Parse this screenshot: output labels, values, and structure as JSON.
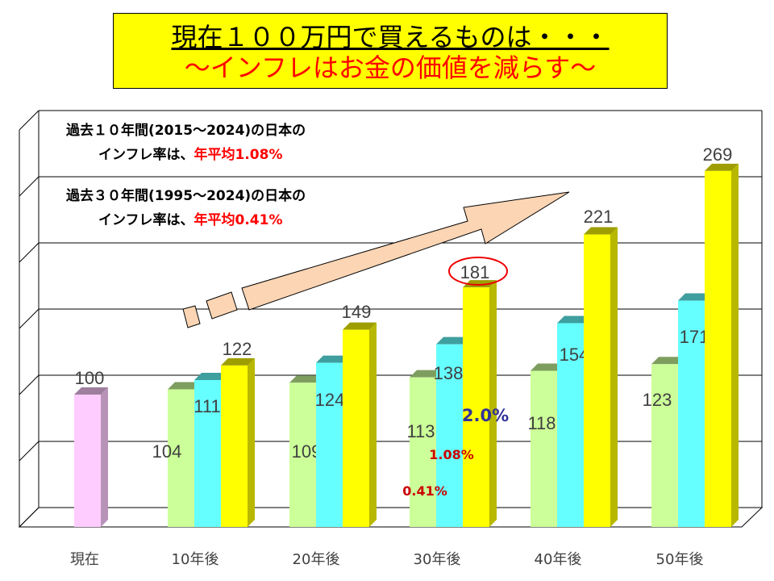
{
  "title": {
    "line1": "現在１００万円で買えるものは・・・",
    "line2": "～インフレはお金の価値を減らす～"
  },
  "notes": [
    {
      "line1": "過去１０年間(2015～2024)の日本の",
      "line2_prefix": "インフレ率は、",
      "line2_highlight": "年平均1.08%"
    },
    {
      "line1": "過去３０年間(1995～2024)の日本の",
      "line2_prefix": "インフレ率は、",
      "line2_highlight": "年平均0.41%"
    }
  ],
  "rate_labels": [
    "0.41%",
    "1.08%",
    "2.0%"
  ],
  "chart_data": {
    "type": "bar",
    "categories": [
      "現在",
      "10年後",
      "20年後",
      "30年後",
      "40年後",
      "50年後"
    ],
    "current": {
      "category": "現在",
      "value": 100,
      "color": "#ffccff"
    },
    "series": [
      {
        "values": [
          null,
          104,
          109,
          113,
          118,
          123
        ],
        "color": "#ccff99"
      },
      {
        "values": [
          null,
          111,
          124,
          138,
          154,
          171
        ],
        "color": "#66ffff"
      },
      {
        "values": [
          null,
          122,
          149,
          181,
          221,
          269
        ],
        "color": "#ffff00"
      }
    ],
    "highlighted_value": 181,
    "ylim": [
      0,
      300
    ],
    "grid": true
  }
}
